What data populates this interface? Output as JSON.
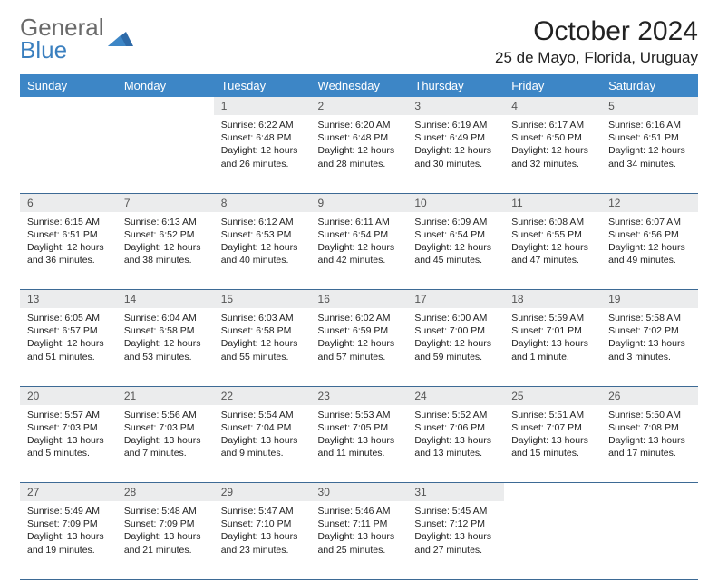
{
  "logo": {
    "line1": "General",
    "line2": "Blue"
  },
  "title": "October 2024",
  "location": "25 de Mayo, Florida, Uruguay",
  "colors": {
    "header_bg": "#3d86c6",
    "header_text": "#ffffff",
    "daynum_bg": "#ebeced",
    "daynum_text": "#555555",
    "rule": "#3d6a95",
    "logo_gray": "#6a6a6a",
    "logo_blue": "#3a7fbf"
  },
  "weekdays": [
    "Sunday",
    "Monday",
    "Tuesday",
    "Wednesday",
    "Thursday",
    "Friday",
    "Saturday"
  ],
  "weeks": [
    [
      null,
      null,
      {
        "n": "1",
        "sr": "6:22 AM",
        "ss": "6:48 PM",
        "dl": "12 hours and 26 minutes."
      },
      {
        "n": "2",
        "sr": "6:20 AM",
        "ss": "6:48 PM",
        "dl": "12 hours and 28 minutes."
      },
      {
        "n": "3",
        "sr": "6:19 AM",
        "ss": "6:49 PM",
        "dl": "12 hours and 30 minutes."
      },
      {
        "n": "4",
        "sr": "6:17 AM",
        "ss": "6:50 PM",
        "dl": "12 hours and 32 minutes."
      },
      {
        "n": "5",
        "sr": "6:16 AM",
        "ss": "6:51 PM",
        "dl": "12 hours and 34 minutes."
      }
    ],
    [
      {
        "n": "6",
        "sr": "6:15 AM",
        "ss": "6:51 PM",
        "dl": "12 hours and 36 minutes."
      },
      {
        "n": "7",
        "sr": "6:13 AM",
        "ss": "6:52 PM",
        "dl": "12 hours and 38 minutes."
      },
      {
        "n": "8",
        "sr": "6:12 AM",
        "ss": "6:53 PM",
        "dl": "12 hours and 40 minutes."
      },
      {
        "n": "9",
        "sr": "6:11 AM",
        "ss": "6:54 PM",
        "dl": "12 hours and 42 minutes."
      },
      {
        "n": "10",
        "sr": "6:09 AM",
        "ss": "6:54 PM",
        "dl": "12 hours and 45 minutes."
      },
      {
        "n": "11",
        "sr": "6:08 AM",
        "ss": "6:55 PM",
        "dl": "12 hours and 47 minutes."
      },
      {
        "n": "12",
        "sr": "6:07 AM",
        "ss": "6:56 PM",
        "dl": "12 hours and 49 minutes."
      }
    ],
    [
      {
        "n": "13",
        "sr": "6:05 AM",
        "ss": "6:57 PM",
        "dl": "12 hours and 51 minutes."
      },
      {
        "n": "14",
        "sr": "6:04 AM",
        "ss": "6:58 PM",
        "dl": "12 hours and 53 minutes."
      },
      {
        "n": "15",
        "sr": "6:03 AM",
        "ss": "6:58 PM",
        "dl": "12 hours and 55 minutes."
      },
      {
        "n": "16",
        "sr": "6:02 AM",
        "ss": "6:59 PM",
        "dl": "12 hours and 57 minutes."
      },
      {
        "n": "17",
        "sr": "6:00 AM",
        "ss": "7:00 PM",
        "dl": "12 hours and 59 minutes."
      },
      {
        "n": "18",
        "sr": "5:59 AM",
        "ss": "7:01 PM",
        "dl": "13 hours and 1 minute."
      },
      {
        "n": "19",
        "sr": "5:58 AM",
        "ss": "7:02 PM",
        "dl": "13 hours and 3 minutes."
      }
    ],
    [
      {
        "n": "20",
        "sr": "5:57 AM",
        "ss": "7:03 PM",
        "dl": "13 hours and 5 minutes."
      },
      {
        "n": "21",
        "sr": "5:56 AM",
        "ss": "7:03 PM",
        "dl": "13 hours and 7 minutes."
      },
      {
        "n": "22",
        "sr": "5:54 AM",
        "ss": "7:04 PM",
        "dl": "13 hours and 9 minutes."
      },
      {
        "n": "23",
        "sr": "5:53 AM",
        "ss": "7:05 PM",
        "dl": "13 hours and 11 minutes."
      },
      {
        "n": "24",
        "sr": "5:52 AM",
        "ss": "7:06 PM",
        "dl": "13 hours and 13 minutes."
      },
      {
        "n": "25",
        "sr": "5:51 AM",
        "ss": "7:07 PM",
        "dl": "13 hours and 15 minutes."
      },
      {
        "n": "26",
        "sr": "5:50 AM",
        "ss": "7:08 PM",
        "dl": "13 hours and 17 minutes."
      }
    ],
    [
      {
        "n": "27",
        "sr": "5:49 AM",
        "ss": "7:09 PM",
        "dl": "13 hours and 19 minutes."
      },
      {
        "n": "28",
        "sr": "5:48 AM",
        "ss": "7:09 PM",
        "dl": "13 hours and 21 minutes."
      },
      {
        "n": "29",
        "sr": "5:47 AM",
        "ss": "7:10 PM",
        "dl": "13 hours and 23 minutes."
      },
      {
        "n": "30",
        "sr": "5:46 AM",
        "ss": "7:11 PM",
        "dl": "13 hours and 25 minutes."
      },
      {
        "n": "31",
        "sr": "5:45 AM",
        "ss": "7:12 PM",
        "dl": "13 hours and 27 minutes."
      },
      null,
      null
    ]
  ],
  "labels": {
    "sunrise": "Sunrise:",
    "sunset": "Sunset:",
    "daylight": "Daylight:"
  }
}
